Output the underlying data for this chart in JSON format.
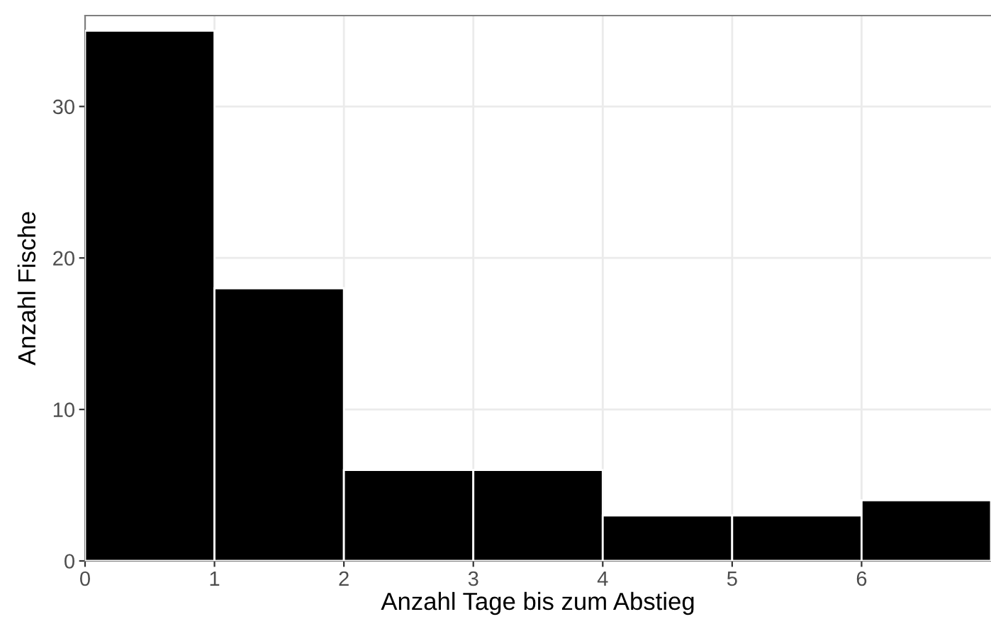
{
  "chart_data": {
    "type": "histogram",
    "xlabel": "Anzahl Tage bis zum Abstieg",
    "ylabel": "Anzahl Fische",
    "bins": [
      0,
      1,
      2,
      3,
      4,
      5,
      6,
      7
    ],
    "values": [
      35,
      18,
      6,
      6,
      3,
      3,
      4
    ],
    "color": "#000000",
    "xlim": [
      0,
      7
    ],
    "ylim": [
      0,
      36
    ],
    "xticks": [
      0,
      1,
      2,
      3,
      4,
      5,
      6
    ],
    "yticks": [
      0,
      10,
      20,
      30
    ],
    "grid": true
  }
}
